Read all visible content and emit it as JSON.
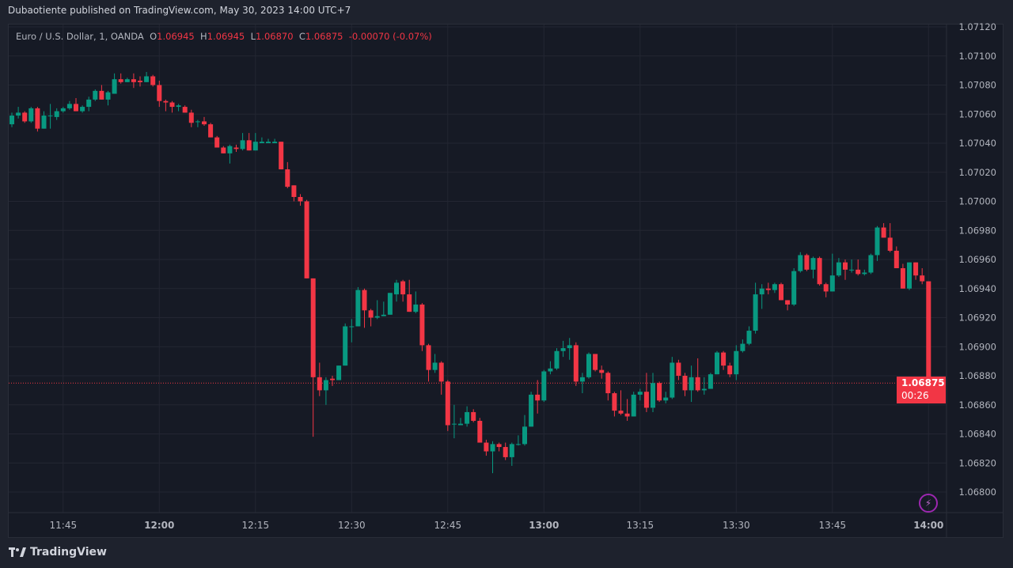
{
  "header": {
    "published": "Dubaotiente published on TradingView.com, May 30, 2023 14:00 UTC+7"
  },
  "legend": {
    "symbol": "Euro / U.S. Dollar, 1, OANDA",
    "o_label": "O",
    "o": "1.06945",
    "h_label": "H",
    "h": "1.06945",
    "l_label": "L",
    "l": "1.06870",
    "c_label": "C",
    "c": "1.06875",
    "change": "-0.00070 (-0.07%)"
  },
  "price_tag": {
    "price": "1.06875",
    "countdown": "00:26"
  },
  "footer": {
    "brand": "TradingView"
  },
  "icons": {
    "alert": "lightning-icon",
    "logo": "tradingview-logo"
  },
  "colors": {
    "up": "#089981",
    "down": "#f23645",
    "background": "#161a25",
    "grid": "#232632"
  },
  "chart_data": {
    "type": "candlestick",
    "title": "",
    "interval_minutes": 1,
    "ylim": [
      1.0679,
      1.07125
    ],
    "y_ticks": [
      "1.06800",
      "1.06820",
      "1.06840",
      "1.06860",
      "1.06880",
      "1.06900",
      "1.06920",
      "1.06940",
      "1.06960",
      "1.06980",
      "1.07000",
      "1.07020",
      "1.07040",
      "1.07060",
      "1.07080",
      "1.07100",
      "1.07120"
    ],
    "x_ticks": [
      {
        "label": "11:45",
        "bold": false
      },
      {
        "label": "12:00",
        "bold": true
      },
      {
        "label": "12:15",
        "bold": false
      },
      {
        "label": "12:30",
        "bold": false
      },
      {
        "label": "12:45",
        "bold": false
      },
      {
        "label": "13:00",
        "bold": true
      },
      {
        "label": "13:15",
        "bold": false
      },
      {
        "label": "13:30",
        "bold": false
      },
      {
        "label": "13:45",
        "bold": false
      },
      {
        "label": "14:00",
        "bold": true
      }
    ],
    "grid": true,
    "last_price": 1.06875,
    "candles_ohlc_from_11_37": [
      [
        1.07053,
        1.07061,
        1.07051,
        1.07059
      ],
      [
        1.07059,
        1.07065,
        1.07057,
        1.07061
      ],
      [
        1.07061,
        1.07062,
        1.07054,
        1.07055
      ],
      [
        1.07055,
        1.07065,
        1.07054,
        1.07064
      ],
      [
        1.07064,
        1.07065,
        1.07048,
        1.0705
      ],
      [
        1.0705,
        1.07062,
        1.0705,
        1.07059
      ],
      [
        1.07059,
        1.07067,
        1.0705,
        1.07059
      ],
      [
        1.07058,
        1.07064,
        1.07056,
        1.07062
      ],
      [
        1.07062,
        1.07065,
        1.07061,
        1.07064
      ],
      [
        1.07064,
        1.07069,
        1.07063,
        1.07067
      ],
      [
        1.07067,
        1.07071,
        1.07062,
        1.07062
      ],
      [
        1.07062,
        1.07066,
        1.07061,
        1.07065
      ],
      [
        1.07065,
        1.07072,
        1.07062,
        1.0707
      ],
      [
        1.0707,
        1.07077,
        1.07069,
        1.07076
      ],
      [
        1.07076,
        1.0708,
        1.0707,
        1.0707
      ],
      [
        1.0707,
        1.07076,
        1.07066,
        1.07075
      ],
      [
        1.07074,
        1.07088,
        1.07074,
        1.07084
      ],
      [
        1.07084,
        1.07088,
        1.07081,
        1.07082
      ],
      [
        1.07082,
        1.07085,
        1.07082,
        1.07084
      ],
      [
        1.07084,
        1.07088,
        1.07078,
        1.07082
      ],
      [
        1.07083,
        1.07086,
        1.07079,
        1.07082
      ],
      [
        1.07082,
        1.07089,
        1.07082,
        1.07086
      ],
      [
        1.07086,
        1.07087,
        1.07079,
        1.0708
      ],
      [
        1.0708,
        1.07083,
        1.07065,
        1.07069
      ],
      [
        1.07069,
        1.0707,
        1.07062,
        1.07068
      ],
      [
        1.07068,
        1.07069,
        1.07061,
        1.07065
      ],
      [
        1.07065,
        1.07067,
        1.07062,
        1.07066
      ],
      [
        1.07065,
        1.07066,
        1.07061,
        1.07061
      ],
      [
        1.07061,
        1.07063,
        1.07051,
        1.07054
      ],
      [
        1.07055,
        1.07056,
        1.07051,
        1.07055
      ],
      [
        1.07055,
        1.07058,
        1.07052,
        1.07053
      ],
      [
        1.07053,
        1.07054,
        1.07044,
        1.07044
      ],
      [
        1.07044,
        1.07045,
        1.07037,
        1.07037
      ],
      [
        1.07037,
        1.07038,
        1.07033,
        1.07033
      ],
      [
        1.07033,
        1.07039,
        1.07026,
        1.07038
      ],
      [
        1.07037,
        1.07039,
        1.07034,
        1.07036
      ],
      [
        1.07036,
        1.07047,
        1.07035,
        1.07042
      ],
      [
        1.07042,
        1.07047,
        1.07035,
        1.07035
      ],
      [
        1.07035,
        1.07047,
        1.07035,
        1.07041
      ],
      [
        1.0704,
        1.07044,
        1.0704,
        1.07041
      ],
      [
        1.0704,
        1.07043,
        1.0704,
        1.07041
      ],
      [
        1.0704,
        1.07043,
        1.0704,
        1.07041
      ],
      [
        1.07041,
        1.07041,
        1.07022,
        1.07022
      ],
      [
        1.07022,
        1.07027,
        1.07009,
        1.0701
      ],
      [
        1.07011,
        1.07011,
        1.07,
        1.07003
      ],
      [
        1.07003,
        1.07005,
        1.06997,
        1.07
      ],
      [
        1.07,
        1.07001,
        1.06947,
        1.06947
      ],
      [
        1.06947,
        1.06947,
        1.06838,
        1.06879
      ],
      [
        1.06879,
        1.06889,
        1.06866,
        1.0687
      ],
      [
        1.0687,
        1.06879,
        1.0686,
        1.06877
      ],
      [
        1.06878,
        1.0688,
        1.06873,
        1.06877
      ],
      [
        1.06877,
        1.06887,
        1.06877,
        1.06887
      ],
      [
        1.06887,
        1.06916,
        1.06887,
        1.06914
      ],
      [
        1.06914,
        1.06919,
        1.06903,
        1.06914
      ],
      [
        1.06914,
        1.06941,
        1.06914,
        1.06939
      ],
      [
        1.06939,
        1.0694,
        1.06913,
        1.06925
      ],
      [
        1.06925,
        1.06926,
        1.06914,
        1.0692
      ],
      [
        1.0692,
        1.06932,
        1.06919,
        1.06921
      ],
      [
        1.06921,
        1.06931,
        1.06921,
        1.06922
      ],
      [
        1.06922,
        1.06937,
        1.06922,
        1.06937
      ],
      [
        1.06936,
        1.06946,
        1.06931,
        1.06944
      ],
      [
        1.06945,
        1.06946,
        1.06931,
        1.06936
      ],
      [
        1.06936,
        1.06946,
        1.06924,
        1.06924
      ],
      [
        1.06924,
        1.06938,
        1.06923,
        1.06929
      ],
      [
        1.06929,
        1.0693,
        1.06897,
        1.06901
      ],
      [
        1.06901,
        1.06902,
        1.06876,
        1.06884
      ],
      [
        1.06884,
        1.06895,
        1.06882,
        1.06889
      ],
      [
        1.06889,
        1.0689,
        1.06867,
        1.06876
      ],
      [
        1.06876,
        1.06877,
        1.06842,
        1.06846
      ],
      [
        1.06847,
        1.0686,
        1.06837,
        1.06847
      ],
      [
        1.06846,
        1.06851,
        1.06846,
        1.06847
      ],
      [
        1.06847,
        1.06859,
        1.06845,
        1.06855
      ],
      [
        1.06855,
        1.06857,
        1.06848,
        1.06849
      ],
      [
        1.06849,
        1.06851,
        1.06834,
        1.06834
      ],
      [
        1.06834,
        1.06836,
        1.06825,
        1.06828
      ],
      [
        1.06828,
        1.06835,
        1.06813,
        1.06833
      ],
      [
        1.06833,
        1.06834,
        1.06828,
        1.06831
      ],
      [
        1.06831,
        1.06834,
        1.06822,
        1.06824
      ],
      [
        1.06824,
        1.06834,
        1.06818,
        1.06833
      ],
      [
        1.06833,
        1.06839,
        1.06832,
        1.06833
      ],
      [
        1.06833,
        1.06853,
        1.06832,
        1.06845
      ],
      [
        1.06845,
        1.06869,
        1.06845,
        1.06867
      ],
      [
        1.06867,
        1.06877,
        1.06854,
        1.06863
      ],
      [
        1.06863,
        1.06884,
        1.06862,
        1.06883
      ],
      [
        1.06883,
        1.0689,
        1.06881,
        1.06885
      ],
      [
        1.06885,
        1.06899,
        1.06884,
        1.06897
      ],
      [
        1.06897,
        1.06904,
        1.06893,
        1.06899
      ],
      [
        1.06899,
        1.06906,
        1.06891,
        1.06901
      ],
      [
        1.06901,
        1.06903,
        1.06873,
        1.06876
      ],
      [
        1.06876,
        1.06882,
        1.06868,
        1.06879
      ],
      [
        1.06879,
        1.06896,
        1.06878,
        1.06895
      ],
      [
        1.06895,
        1.06895,
        1.06883,
        1.06884
      ],
      [
        1.06884,
        1.06887,
        1.06878,
        1.06882
      ],
      [
        1.06882,
        1.06883,
        1.06863,
        1.06868
      ],
      [
        1.06868,
        1.06869,
        1.06852,
        1.06856
      ],
      [
        1.06856,
        1.0687,
        1.06853,
        1.06854
      ],
      [
        1.06854,
        1.06864,
        1.06849,
        1.06852
      ],
      [
        1.06852,
        1.06869,
        1.06852,
        1.06867
      ],
      [
        1.06867,
        1.06871,
        1.06863,
        1.06869
      ],
      [
        1.06869,
        1.06882,
        1.06855,
        1.06858
      ],
      [
        1.06858,
        1.06882,
        1.06855,
        1.06875
      ],
      [
        1.06875,
        1.06876,
        1.06862,
        1.06863
      ],
      [
        1.06863,
        1.06869,
        1.06861,
        1.06865
      ],
      [
        1.06865,
        1.06893,
        1.06864,
        1.06889
      ],
      [
        1.06889,
        1.06891,
        1.06877,
        1.0688
      ],
      [
        1.0688,
        1.06882,
        1.06866,
        1.0687
      ],
      [
        1.0687,
        1.06887,
        1.06862,
        1.06879
      ],
      [
        1.06879,
        1.06892,
        1.06869,
        1.0687
      ],
      [
        1.0687,
        1.06879,
        1.06867,
        1.06871
      ],
      [
        1.06871,
        1.06882,
        1.06871,
        1.06881
      ],
      [
        1.06881,
        1.06897,
        1.06881,
        1.06896
      ],
      [
        1.06896,
        1.06897,
        1.06884,
        1.06887
      ],
      [
        1.06887,
        1.06889,
        1.06879,
        1.06881
      ],
      [
        1.06881,
        1.06901,
        1.06877,
        1.06897
      ],
      [
        1.06897,
        1.06905,
        1.06896,
        1.06902
      ],
      [
        1.06902,
        1.06914,
        1.06901,
        1.06911
      ],
      [
        1.06911,
        1.06944,
        1.06909,
        1.06936
      ],
      [
        1.06936,
        1.06943,
        1.06926,
        1.0694
      ],
      [
        1.0694,
        1.06944,
        1.06936,
        1.06939
      ],
      [
        1.06939,
        1.06944,
        1.06937,
        1.06943
      ],
      [
        1.06943,
        1.06944,
        1.06932,
        1.06932
      ],
      [
        1.06932,
        1.06932,
        1.06925,
        1.06929
      ],
      [
        1.06929,
        1.06954,
        1.06928,
        1.06952
      ],
      [
        1.06952,
        1.06965,
        1.06951,
        1.06963
      ],
      [
        1.06963,
        1.06964,
        1.06952,
        1.06953
      ],
      [
        1.06953,
        1.06962,
        1.06947,
        1.06961
      ],
      [
        1.06961,
        1.06962,
        1.06942,
        1.06943
      ],
      [
        1.06943,
        1.06944,
        1.06934,
        1.06938
      ],
      [
        1.06938,
        1.06964,
        1.06938,
        1.06949
      ],
      [
        1.06949,
        1.06961,
        1.06948,
        1.06958
      ],
      [
        1.06958,
        1.0696,
        1.06946,
        1.06953
      ],
      [
        1.06953,
        1.0696,
        1.06951,
        1.06953
      ],
      [
        1.06953,
        1.0696,
        1.06949,
        1.0695
      ],
      [
        1.0695,
        1.06953,
        1.06949,
        1.06951
      ],
      [
        1.06951,
        1.06964,
        1.0695,
        1.06963
      ],
      [
        1.06963,
        1.06983,
        1.06959,
        1.06982
      ],
      [
        1.06982,
        1.06985,
        1.06975,
        1.06975
      ],
      [
        1.06975,
        1.06985,
        1.06965,
        1.06966
      ],
      [
        1.06966,
        1.06969,
        1.06954,
        1.06954
      ],
      [
        1.06954,
        1.06957,
        1.0694,
        1.0694
      ],
      [
        1.0694,
        1.06958,
        1.06939,
        1.06958
      ],
      [
        1.06958,
        1.06958,
        1.06946,
        1.06949
      ],
      [
        1.06949,
        1.06954,
        1.06943,
        1.06945
      ],
      [
        1.06945,
        1.06945,
        1.0687,
        1.06875
      ]
    ]
  }
}
